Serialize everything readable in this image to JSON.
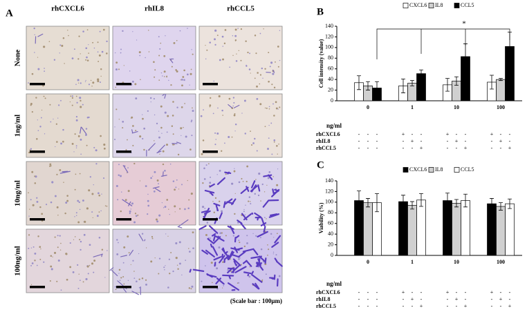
{
  "panel_a": {
    "label": "A",
    "columns": [
      "rhCXCL6",
      "rhIL8",
      "rhCCL5"
    ],
    "rows": [
      "None",
      "1ng/ml",
      "10ng/ml",
      "100ng/ml"
    ],
    "scale_note": "(Scale bar : 100μm)"
  },
  "chart_data": [
    {
      "type": "bar",
      "panel": "B",
      "y_label": "Cell intensity (value)",
      "categories": [
        "0",
        "1",
        "10",
        "100"
      ],
      "series": [
        {
          "name": "CXCL6",
          "color": "#ffffff",
          "values": [
            34,
            28,
            30,
            35
          ],
          "errors": [
            13,
            13,
            12,
            13
          ]
        },
        {
          "name": "IL8",
          "color": "#d0d0d0",
          "values": [
            28,
            33,
            37,
            40
          ],
          "errors": [
            8,
            5,
            8,
            2
          ]
        },
        {
          "name": "CCL5",
          "color": "#000000",
          "values": [
            24,
            51,
            83,
            102
          ],
          "errors": [
            12,
            7,
            24,
            27
          ]
        }
      ],
      "ylim": [
        0,
        140
      ],
      "yticks": [
        0,
        20,
        40,
        60,
        80,
        100,
        120,
        140
      ],
      "annotation": "*",
      "treatment_table": {
        "unit_label": "ng/ml",
        "rows": [
          {
            "label": "rhCXCL6",
            "signs": [
              "-",
              "-",
              "-",
              "+",
              "-",
              "-",
              "+",
              "-",
              "-",
              "+",
              "-",
              "-"
            ]
          },
          {
            "label": "rhIL8",
            "signs": [
              "-",
              "-",
              "-",
              "-",
              "+",
              "-",
              "-",
              "+",
              "-",
              "-",
              "+",
              "-"
            ]
          },
          {
            "label": "rhCCL5",
            "signs": [
              "-",
              "-",
              "-",
              "-",
              "-",
              "+",
              "-",
              "-",
              "+",
              "-",
              "-",
              "+"
            ]
          }
        ]
      }
    },
    {
      "type": "bar",
      "panel": "C",
      "y_label": "Viability (%)",
      "categories": [
        "0",
        "1",
        "10",
        "100"
      ],
      "series": [
        {
          "name": "CXCL6",
          "color": "#000000",
          "values": [
            103,
            101,
            103,
            97
          ],
          "errors": [
            18,
            12,
            14,
            10
          ]
        },
        {
          "name": "IL8",
          "color": "#d0d0d0",
          "values": [
            99,
            94,
            98,
            92
          ],
          "errors": [
            8,
            7,
            7,
            7
          ]
        },
        {
          "name": "CCL5",
          "color": "#ffffff",
          "values": [
            99,
            104,
            103,
            97
          ],
          "errors": [
            17,
            12,
            12,
            9
          ]
        }
      ],
      "ylim": [
        0,
        140
      ],
      "yticks": [
        0,
        20,
        40,
        60,
        80,
        100,
        120,
        140
      ],
      "treatment_table": {
        "unit_label": "ng/ml",
        "rows": [
          {
            "label": "rhCXCL6",
            "signs": [
              "-",
              "-",
              "-",
              "+",
              "-",
              "-",
              "+",
              "-",
              "-",
              "+",
              "-",
              "-"
            ]
          },
          {
            "label": "rhIL8",
            "signs": [
              "-",
              "-",
              "-",
              "-",
              "+",
              "-",
              "-",
              "+",
              "-",
              "-",
              "+",
              "-"
            ]
          },
          {
            "label": "rhCCL5",
            "signs": [
              "-",
              "-",
              "-",
              "-",
              "-",
              "+",
              "-",
              "-",
              "+",
              "-",
              "-",
              "+"
            ]
          }
        ]
      }
    }
  ]
}
